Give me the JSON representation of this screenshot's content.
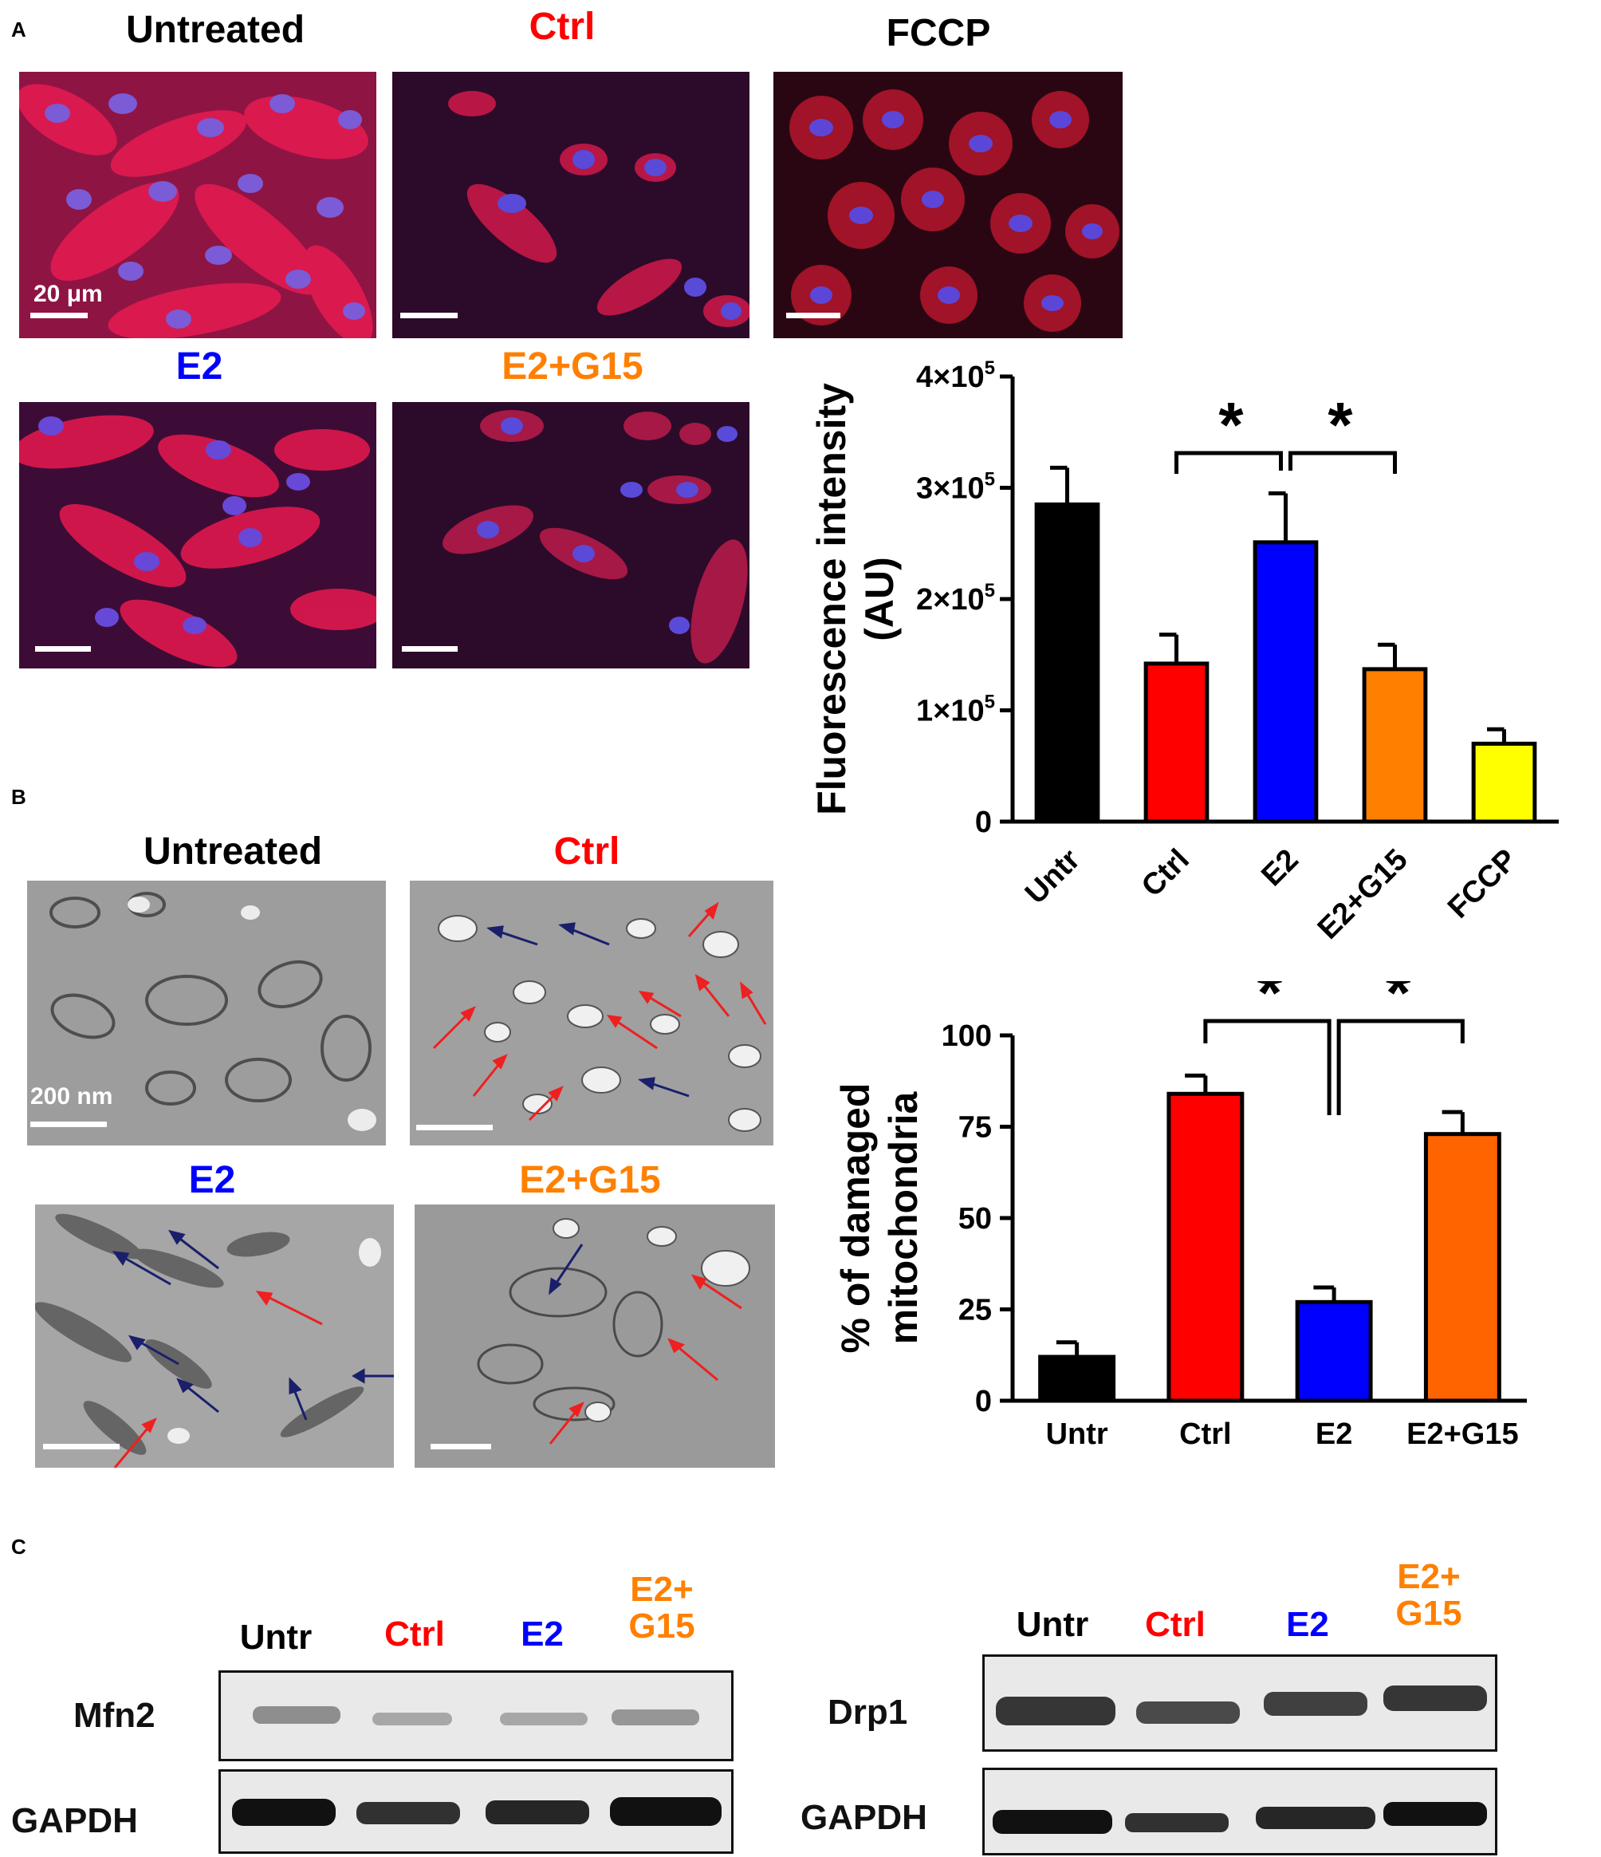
{
  "colors": {
    "black": "#000000",
    "red": "#ff0000",
    "blue": "#0000ff",
    "orange": "#ff8000",
    "dark_orange": "#ff6400",
    "yellow": "#ffff00",
    "arrow_red": "#ee2020",
    "arrow_blue": "#1a1f6b"
  },
  "panel_a": {
    "letter": "A",
    "images": [
      {
        "label": "Untreated",
        "color": "#000000",
        "scale_label": "20 μm"
      },
      {
        "label": "Ctrl",
        "color": "#ff0000"
      },
      {
        "label": "FCCP",
        "color": "#000000"
      },
      {
        "label": "E2",
        "color": "#0000ff"
      },
      {
        "label": "E2+G15",
        "color": "#ff8000"
      }
    ]
  },
  "panel_b": {
    "letter": "B",
    "images": [
      {
        "label": "Untreated",
        "color": "#000000",
        "scale_label": "200 nm"
      },
      {
        "label": "Ctrl",
        "color": "#ff0000"
      },
      {
        "label": "E2",
        "color": "#0000ff"
      },
      {
        "label": "E2+G15",
        "color": "#ff8000"
      }
    ]
  },
  "panel_c": {
    "letter": "C",
    "left_blot": {
      "lanes": [
        {
          "label": "Untr",
          "color": "#000000"
        },
        {
          "label": "Ctrl",
          "color": "#ff0000"
        },
        {
          "label": "E2",
          "color": "#0000ff"
        },
        {
          "label": "E2+\nG15",
          "color": "#ff8000"
        }
      ],
      "rows": [
        "Mfn2",
        "GAPDH"
      ]
    },
    "right_blot": {
      "lanes": [
        {
          "label": "Untr",
          "color": "#000000"
        },
        {
          "label": "Ctrl",
          "color": "#ff0000"
        },
        {
          "label": "E2",
          "color": "#0000ff"
        },
        {
          "label": "E2+\nG15",
          "color": "#ff8000"
        }
      ],
      "rows": [
        "Drp1",
        "GAPDH"
      ]
    }
  },
  "chart_data": [
    {
      "type": "bar",
      "title": "",
      "ylabel": "Fluorescence intensity\n(AU)",
      "xlabel": "",
      "categories": [
        "Untr",
        "Ctrl",
        "E2",
        "E2+G15",
        "FCCP"
      ],
      "values": [
        285000,
        142000,
        251000,
        137000,
        70000
      ],
      "errors": [
        33000,
        26000,
        44000,
        22000,
        13000
      ],
      "bar_colors": [
        "#000000",
        "#ff0000",
        "#0000ff",
        "#ff8000",
        "#ffff00"
      ],
      "ylim": [
        0,
        400000
      ],
      "yticks": [
        0,
        100000,
        200000,
        300000,
        400000
      ],
      "ytick_labels": [
        "0",
        "1×10",
        "2×10",
        "3×10",
        "4×10"
      ],
      "ytick_exponent": "5",
      "xtick_rotation": -45,
      "significance": [
        {
          "from": "Ctrl",
          "to": "E2",
          "label": "*"
        },
        {
          "from": "E2",
          "to": "E2+G15",
          "label": "*"
        }
      ],
      "grid": false,
      "legend": "none"
    },
    {
      "type": "bar",
      "title": "",
      "ylabel": "% of damaged\nmitochondria",
      "xlabel": "",
      "categories": [
        "Untr",
        "Ctrl",
        "E2",
        "E2+G15"
      ],
      "values": [
        12,
        84,
        27,
        73
      ],
      "errors": [
        4,
        5,
        4,
        6
      ],
      "bar_colors": [
        "#000000",
        "#ff0000",
        "#0000ff",
        "#ff6400"
      ],
      "ylim": [
        0,
        100
      ],
      "yticks": [
        0,
        25,
        50,
        75,
        100
      ],
      "ytick_labels": [
        "0",
        "25",
        "50",
        "75",
        "100"
      ],
      "significance": [
        {
          "from": "Ctrl",
          "to": "E2",
          "label": "*"
        },
        {
          "from": "E2",
          "to": "E2+G15",
          "label": "*"
        }
      ],
      "grid": false,
      "legend": "none"
    }
  ]
}
